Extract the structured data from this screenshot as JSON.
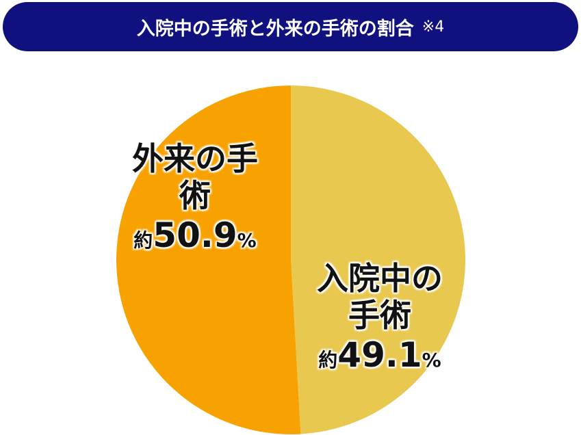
{
  "title": "入院中の手術と外来の手術の割合",
  "note": "※4",
  "chart_data": {
    "type": "pie",
    "categories": [
      "入院中の手術",
      "外来の手術"
    ],
    "values": [
      49.1,
      50.9
    ],
    "value_labels": [
      "約49.1%",
      "約50.9%"
    ],
    "colors": [
      "#e8c84f",
      "#f7a200"
    ]
  }
}
